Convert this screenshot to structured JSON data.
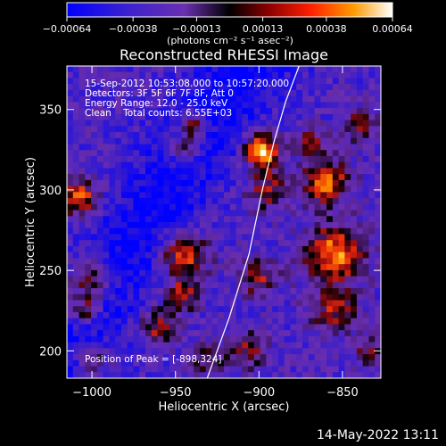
{
  "colorbar": {
    "tick_labels": [
      "-0.00064",
      "-0.00038",
      "-0.00013",
      "0.00013",
      "0.00038",
      "0.00064"
    ],
    "range": [
      -0.00064,
      0.00064
    ],
    "unit_label": "(photons cm⁻² s⁻¹ asec⁻²)"
  },
  "chart_data": {
    "type": "heatmap",
    "title": "Reconstructed RHESSI Image",
    "xlabel": "Heliocentric X (arcsec)",
    "ylabel": "Heliocentric Y (arcsec)",
    "xlim": [
      -1015,
      -827
    ],
    "ylim": [
      183,
      377
    ],
    "xticks": [
      -1000,
      -950,
      -900,
      -850
    ],
    "yticks": [
      200,
      250,
      300,
      350
    ],
    "xtick_labels": [
      "−1000",
      "−950",
      "−900",
      "−850"
    ],
    "ytick_labels": [
      "200",
      "250",
      "300",
      "350"
    ],
    "color_scale": [
      "#0000ff",
      "#5a2bb0",
      "#7a30c0",
      "#000000",
      "#8b0000",
      "#ff3000",
      "#ff9a00",
      "#ffff60",
      "#ffffff"
    ],
    "limb_curve": {
      "x": [
        -931,
        -918,
        -906,
        -898,
        -891,
        -884,
        -876
      ],
      "y": [
        183,
        220,
        260,
        300,
        330,
        355,
        377
      ]
    },
    "annotations": [
      "15-Sep-2012 10:53:08.000 to 10:57:20.000",
      "Detectors: 3F 5F 6F 7F 8F, Att 0",
      "Energy Range: 12.0 - 25.0 keV",
      "Clean    Total counts: 6.55E+03"
    ],
    "peak_label": "Position of Peak = [-898,324]",
    "peak": {
      "x": -898,
      "y": 324
    }
  },
  "footer": {
    "date": "14-May-2022 13:11"
  }
}
